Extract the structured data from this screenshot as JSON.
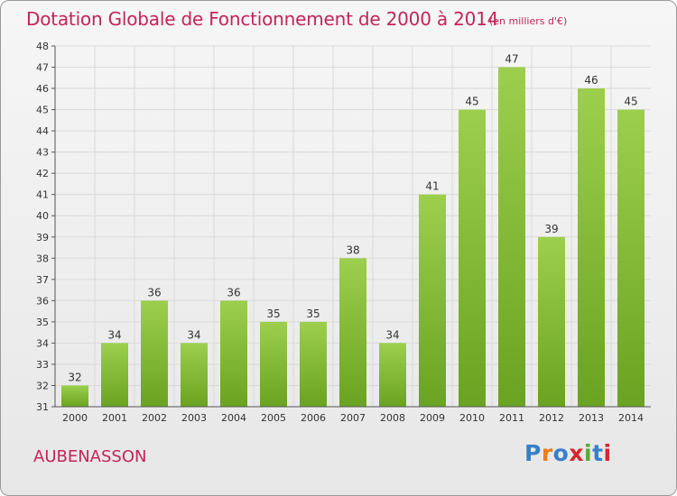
{
  "header": {
    "title": "Dotation Globale de Fonctionnement de 2000 à 2014",
    "unit": "(en milliers d'€)"
  },
  "footer": {
    "commune": "AUBENASSON",
    "logo": {
      "text": "Proxiti",
      "letter_colors": [
        "#3a7fc9",
        "#ef7d12",
        "#3a7fc9",
        "#d8262c",
        "#5aab2f",
        "#3a7fc9",
        "#d8262c"
      ]
    }
  },
  "colors": {
    "title": "#c4245a",
    "bar_light": "#9ccf4d",
    "bar_dark": "#6aa321",
    "grid": "#d9d9d9",
    "axis": "#555555",
    "text": "#333333"
  },
  "chart_data": {
    "type": "bar",
    "categories": [
      "2000",
      "2001",
      "2002",
      "2003",
      "2004",
      "2005",
      "2006",
      "2007",
      "2008",
      "2009",
      "2010",
      "2011",
      "2012",
      "2013",
      "2014"
    ],
    "values": [
      32,
      34,
      36,
      34,
      36,
      35,
      35,
      38,
      34,
      41,
      45,
      47,
      39,
      46,
      45
    ],
    "ylim": [
      31,
      48
    ],
    "yticks": [
      31,
      32,
      33,
      34,
      35,
      36,
      37,
      38,
      39,
      40,
      41,
      42,
      43,
      44,
      45,
      46,
      47,
      48
    ],
    "grid": true,
    "data_labels": true,
    "legend": "none"
  }
}
